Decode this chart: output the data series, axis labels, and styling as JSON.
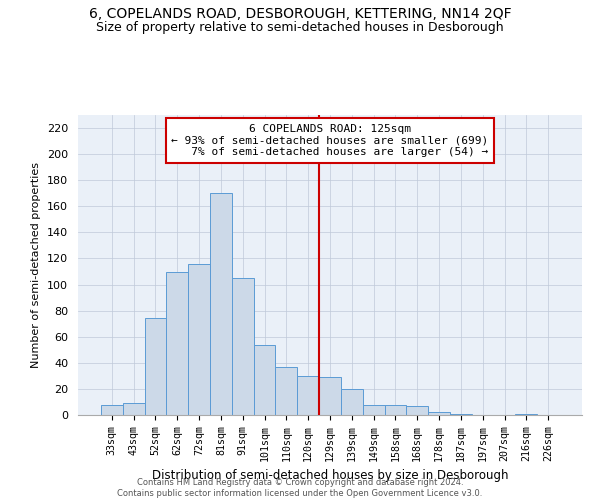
{
  "title": "6, COPELANDS ROAD, DESBOROUGH, KETTERING, NN14 2QF",
  "subtitle": "Size of property relative to semi-detached houses in Desborough",
  "xlabel": "Distribution of semi-detached houses by size in Desborough",
  "ylabel": "Number of semi-detached properties",
  "footnote1": "Contains HM Land Registry data © Crown copyright and database right 2024.",
  "footnote2": "Contains public sector information licensed under the Open Government Licence v3.0.",
  "bar_labels": [
    "33sqm",
    "43sqm",
    "52sqm",
    "62sqm",
    "72sqm",
    "81sqm",
    "91sqm",
    "101sqm",
    "110sqm",
    "120sqm",
    "129sqm",
    "139sqm",
    "149sqm",
    "158sqm",
    "168sqm",
    "178sqm",
    "187sqm",
    "197sqm",
    "207sqm",
    "216sqm",
    "226sqm"
  ],
  "bar_heights": [
    8,
    9,
    74,
    110,
    116,
    170,
    105,
    54,
    37,
    30,
    29,
    20,
    8,
    8,
    7,
    2,
    1,
    0,
    0,
    1,
    0
  ],
  "bar_color": "#ccd9e8",
  "bar_edge_color": "#5b9bd5",
  "vline_color": "#cc0000",
  "property_label": "6 COPELANDS ROAD: 125sqm",
  "smaller_pct": "93%",
  "smaller_count": 699,
  "larger_pct": "7%",
  "larger_count": 54,
  "annotation_box_edge": "#cc0000",
  "ylim": [
    0,
    230
  ],
  "yticks": [
    0,
    20,
    40,
    60,
    80,
    100,
    120,
    140,
    160,
    180,
    200,
    220
  ],
  "bg_color": "#eaf0f8",
  "plot_bg_color": "#ffffff",
  "title_fontsize": 10,
  "subtitle_fontsize": 9
}
